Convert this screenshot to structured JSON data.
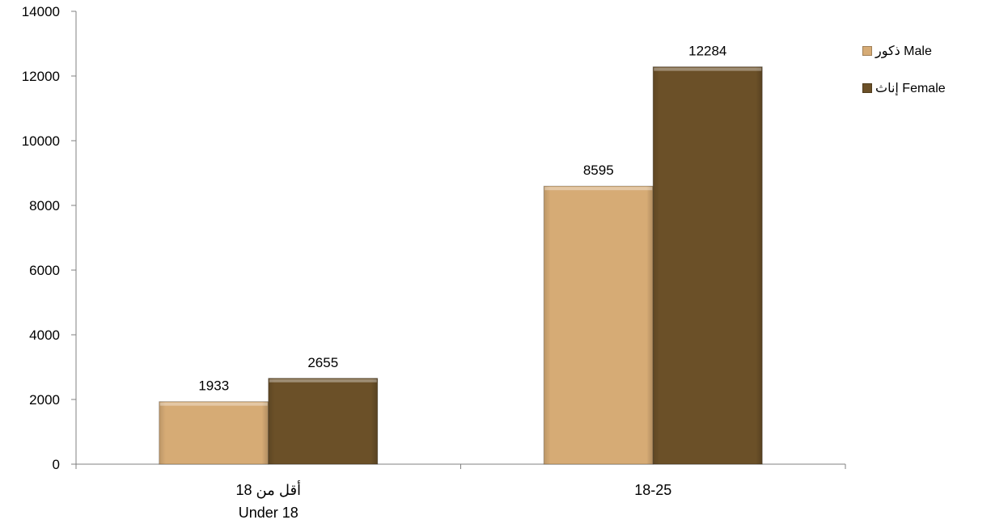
{
  "chart_data": {
    "type": "bar",
    "categories": [
      {
        "line1": "أقل من 18",
        "line2": "Under 18"
      },
      {
        "line1": "18-25",
        "line2": ""
      }
    ],
    "series": [
      {
        "name": "ذكور  Male",
        "color": "#d6ab75",
        "values": [
          1933,
          8595
        ]
      },
      {
        "name": "إناث  Female",
        "color": "#6b5028",
        "values": [
          2655,
          12284
        ]
      }
    ],
    "ylim": [
      0,
      14000
    ],
    "yticks": [
      0,
      2000,
      4000,
      6000,
      8000,
      10000,
      12000,
      14000
    ],
    "ytick_labels": [
      "0",
      "2000",
      "4000",
      "6000",
      "8000",
      "10000",
      "12000",
      "14000"
    ],
    "legend_position": "right",
    "grid": false
  }
}
